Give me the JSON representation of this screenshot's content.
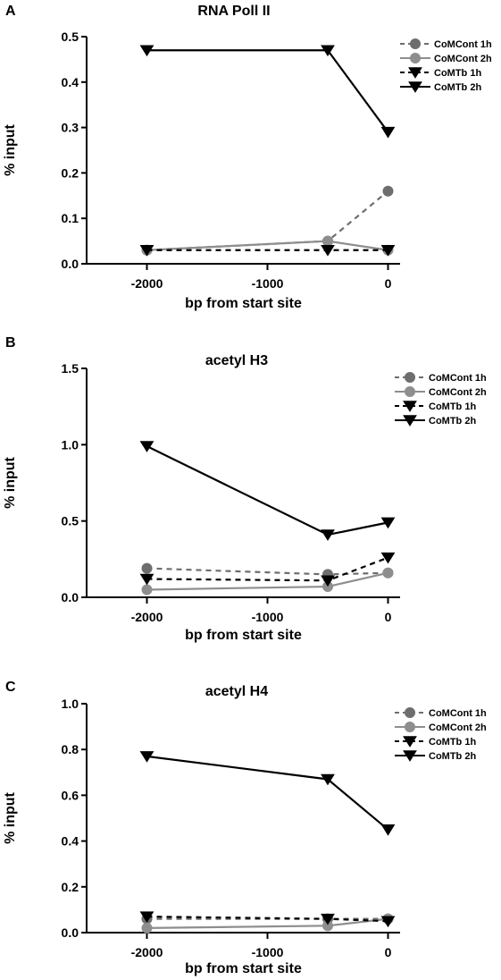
{
  "chart_data": [
    {
      "type": "line",
      "panel_label": "A",
      "title": "RNA Poll II",
      "xlabel": "bp from start site",
      "ylabel": "% input",
      "x": [
        -2000,
        -500,
        0
      ],
      "xlim": [
        -2500,
        100
      ],
      "ylim": [
        0,
        0.5
      ],
      "xticks": [
        -2000,
        -1000,
        0
      ],
      "xtick_labels": [
        "-2000",
        "-1000",
        "0"
      ],
      "yticks": [
        0,
        0.1,
        0.2,
        0.3,
        0.4,
        0.5
      ],
      "ytick_labels": [
        "0.0",
        "0.1",
        "0.2",
        "0.3",
        "0.4",
        "0.5"
      ],
      "legend": "top-right",
      "series": [
        {
          "name": "CoMCont 1h",
          "values": [
            0.03,
            0.05,
            0.16
          ]
        },
        {
          "name": "CoMCont 2h",
          "values": [
            0.03,
            0.05,
            0.03
          ]
        },
        {
          "name": "CoMTb 1h",
          "values": [
            0.03,
            0.03,
            0.03
          ]
        },
        {
          "name": "CoMTb 2h",
          "values": [
            0.47,
            0.47,
            0.29
          ]
        }
      ]
    },
    {
      "type": "line",
      "panel_label": "B",
      "title": "acetyl H3",
      "xlabel": "bp from start site",
      "ylabel": "% input",
      "x": [
        -2000,
        -500,
        0
      ],
      "xlim": [
        -2500,
        100
      ],
      "ylim": [
        0,
        1.5
      ],
      "xticks": [
        -2000,
        -1000,
        0
      ],
      "xtick_labels": [
        "-2000",
        "-1000",
        "0"
      ],
      "yticks": [
        0,
        0.5,
        1.0,
        1.5
      ],
      "ytick_labels": [
        "0.0",
        "0.5",
        "1.0",
        "1.5"
      ],
      "legend": "top-right",
      "series": [
        {
          "name": "CoMCont 1h",
          "values": [
            0.19,
            0.15,
            0.16
          ]
        },
        {
          "name": "CoMCont 2h",
          "values": [
            0.05,
            0.07,
            0.16
          ]
        },
        {
          "name": "CoMTb 1h",
          "values": [
            0.12,
            0.11,
            0.26
          ]
        },
        {
          "name": "CoMTb 2h",
          "values": [
            0.99,
            0.41,
            0.49
          ]
        }
      ]
    },
    {
      "type": "line",
      "panel_label": "C",
      "title": "acetyl H4",
      "xlabel": "bp from start site",
      "ylabel": "% input",
      "x": [
        -2000,
        -500,
        0
      ],
      "xlim": [
        -2500,
        100
      ],
      "ylim": [
        0,
        1.0
      ],
      "xticks": [
        -2000,
        -1000,
        0
      ],
      "xtick_labels": [
        "-2000",
        "-1000",
        "0"
      ],
      "yticks": [
        0,
        0.2,
        0.4,
        0.6,
        0.8,
        1.0
      ],
      "ytick_labels": [
        "0.0",
        "0.2",
        "0.4",
        "0.6",
        "0.8",
        "1.0"
      ],
      "legend": "top-right",
      "series": [
        {
          "name": "CoMCont 1h",
          "values": [
            0.06,
            0.06,
            0.06
          ]
        },
        {
          "name": "CoMCont 2h",
          "values": [
            0.02,
            0.03,
            0.06
          ]
        },
        {
          "name": "CoMTb 1h",
          "values": [
            0.07,
            0.06,
            0.05
          ]
        },
        {
          "name": "CoMTb 2h",
          "values": [
            0.77,
            0.67,
            0.45
          ]
        }
      ]
    }
  ],
  "series_styles": [
    {
      "color": "#6e6e6e",
      "dash": "6,5",
      "marker": "circle"
    },
    {
      "color": "#8e8e8e",
      "dash": "",
      "marker": "circle"
    },
    {
      "color": "#000000",
      "dash": "6,5",
      "marker": "triangle-down"
    },
    {
      "color": "#000000",
      "dash": "",
      "marker": "triangle-down"
    }
  ]
}
